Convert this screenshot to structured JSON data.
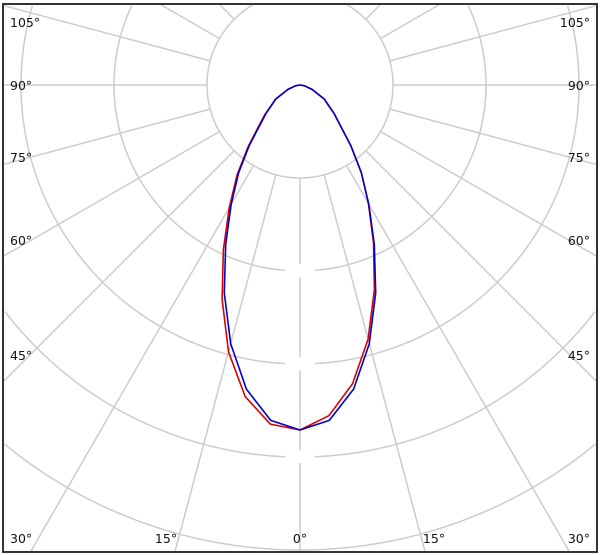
{
  "chart_data": {
    "type": "polar",
    "orientation": "0° pointing down",
    "grid": true,
    "angle_tick_labels": {
      "left": [
        "105°",
        "90°",
        "75°",
        "60°",
        "45°",
        "30°"
      ],
      "right": [
        "105°",
        "90°",
        "75°",
        "60°",
        "45°",
        "30°"
      ],
      "bottom": [
        "15°",
        "0°",
        "15°"
      ]
    },
    "radial_grid_circles": [
      1,
      2,
      3,
      4,
      5,
      6
    ],
    "angular_grid_step_deg": 15,
    "angles_deg": [
      0,
      5,
      10,
      15,
      20,
      25,
      30,
      35,
      40,
      45,
      50,
      60,
      70,
      80,
      90
    ],
    "series": [
      {
        "color": "#dd0000",
        "left": [
          3.71,
          3.66,
          3.4,
          2.97,
          2.45,
          1.95,
          1.52,
          1.18,
          0.87,
          0.63,
          0.49,
          0.3,
          0.14,
          0.05,
          0
        ],
        "right": [
          3.71,
          3.57,
          3.26,
          2.83,
          2.34,
          1.87,
          1.47,
          1.15,
          0.85,
          0.61,
          0.48,
          0.3,
          0.14,
          0.05,
          0
        ]
      },
      {
        "color": "#0000cc",
        "left": [
          3.71,
          3.62,
          3.32,
          2.88,
          2.38,
          1.89,
          1.48,
          1.15,
          0.85,
          0.61,
          0.48,
          0.3,
          0.14,
          0.05,
          0
        ],
        "right": [
          3.71,
          3.62,
          3.32,
          2.88,
          2.38,
          1.89,
          1.48,
          1.15,
          0.85,
          0.61,
          0.48,
          0.3,
          0.14,
          0.05,
          0
        ]
      }
    ],
    "frame_color": "#333333",
    "grid_color": "#cccccc"
  }
}
